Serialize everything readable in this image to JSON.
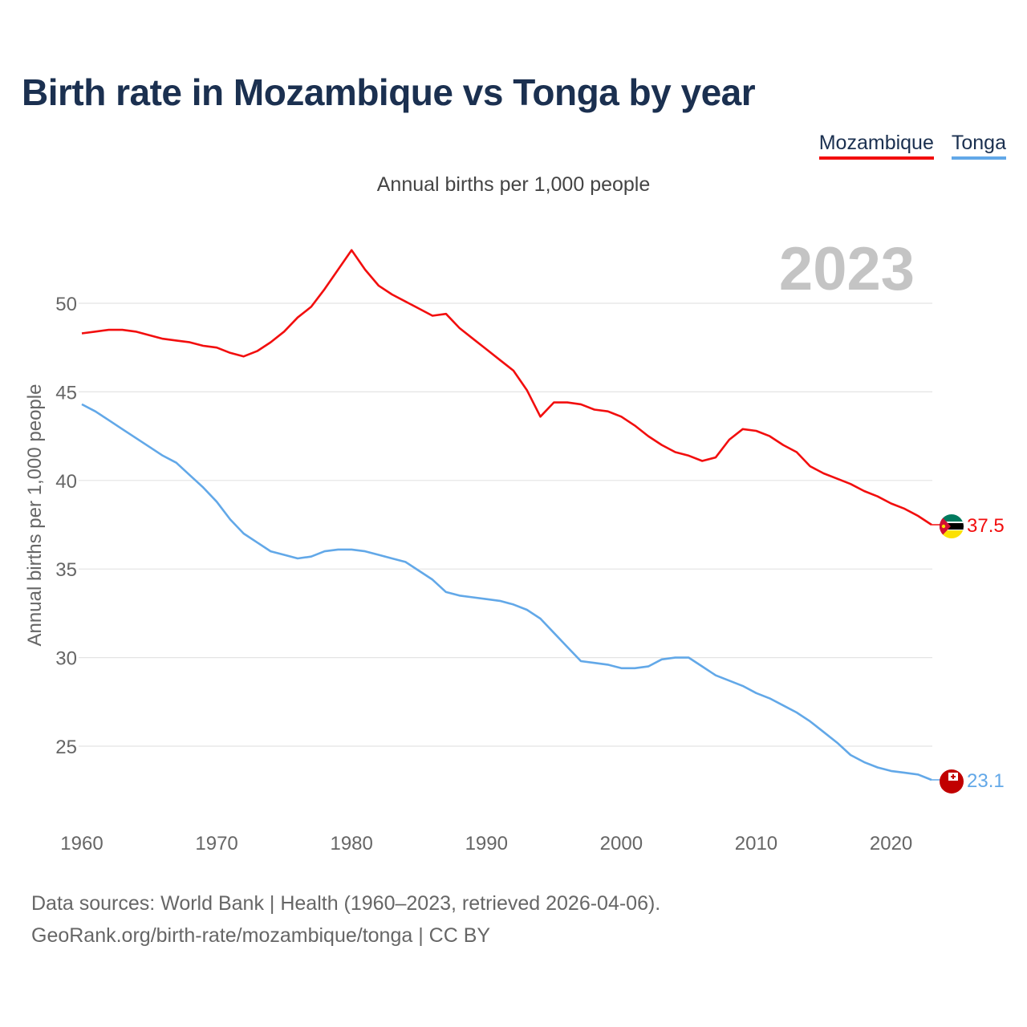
{
  "title": "Birth rate in Mozambique vs Tonga by year",
  "subtitle": "Annual births per 1,000 people",
  "year_label": "2023",
  "legend": [
    {
      "name": "Mozambique",
      "color": "#f20e0e"
    },
    {
      "name": "Tonga",
      "color": "#62a8e8"
    }
  ],
  "source_line1": "Data sources: World Bank | Health (1960–2023, retrieved 2026-04-06).",
  "source_line2": "GeoRank.org/birth-rate/mozambique/tonga | CC BY",
  "chart_data": {
    "type": "line",
    "title": "Birth rate in Mozambique vs Tonga by year",
    "ylabel": "Annual births per 1,000 people",
    "xlabel": "",
    "xlim": [
      1960,
      2023
    ],
    "ylim": [
      21,
      55
    ],
    "x_ticks": [
      1960,
      1970,
      1980,
      1990,
      2000,
      2010,
      2020
    ],
    "y_ticks": [
      25,
      30,
      35,
      40,
      45,
      50
    ],
    "x": [
      1960,
      1961,
      1962,
      1963,
      1964,
      1965,
      1966,
      1967,
      1968,
      1969,
      1970,
      1971,
      1972,
      1973,
      1974,
      1975,
      1976,
      1977,
      1978,
      1979,
      1980,
      1981,
      1982,
      1983,
      1984,
      1985,
      1986,
      1987,
      1988,
      1989,
      1990,
      1991,
      1992,
      1993,
      1994,
      1995,
      1996,
      1997,
      1998,
      1999,
      2000,
      2001,
      2002,
      2003,
      2004,
      2005,
      2006,
      2007,
      2008,
      2009,
      2010,
      2011,
      2012,
      2013,
      2014,
      2015,
      2016,
      2017,
      2018,
      2019,
      2020,
      2021,
      2022,
      2023
    ],
    "series": [
      {
        "name": "Mozambique",
        "color": "#f20e0e",
        "end_label": "37.5",
        "values": [
          48.3,
          48.4,
          48.5,
          48.5,
          48.4,
          48.2,
          48.0,
          47.9,
          47.8,
          47.6,
          47.5,
          47.2,
          47.0,
          47.3,
          47.8,
          48.4,
          49.2,
          49.8,
          50.8,
          51.9,
          53.0,
          51.9,
          51.0,
          50.5,
          50.1,
          49.7,
          49.3,
          49.4,
          48.6,
          48.0,
          47.4,
          46.8,
          46.2,
          45.1,
          43.6,
          44.4,
          44.4,
          44.3,
          44.0,
          43.9,
          43.6,
          43.1,
          42.5,
          42.0,
          41.6,
          41.4,
          41.1,
          41.3,
          42.3,
          42.9,
          42.8,
          42.5,
          42.0,
          41.6,
          40.8,
          40.4,
          40.1,
          39.8,
          39.4,
          39.1,
          38.7,
          38.4,
          38.0,
          37.5
        ]
      },
      {
        "name": "Tonga",
        "color": "#62a8e8",
        "end_label": "23.1",
        "values": [
          44.3,
          43.9,
          43.4,
          42.9,
          42.4,
          41.9,
          41.4,
          41.0,
          40.3,
          39.6,
          38.8,
          37.8,
          37.0,
          36.5,
          36.0,
          35.8,
          35.6,
          35.7,
          36.0,
          36.1,
          36.1,
          36.0,
          35.8,
          35.6,
          35.4,
          34.9,
          34.4,
          33.7,
          33.5,
          33.4,
          33.3,
          33.2,
          33.0,
          32.7,
          32.2,
          31.4,
          30.6,
          29.8,
          29.7,
          29.6,
          29.4,
          29.4,
          29.5,
          29.9,
          30.0,
          30.0,
          29.5,
          29.0,
          28.7,
          28.4,
          28.0,
          27.7,
          27.3,
          26.9,
          26.4,
          25.8,
          25.2,
          24.5,
          24.1,
          23.8,
          23.6,
          23.5,
          23.4,
          23.1
        ]
      }
    ]
  }
}
